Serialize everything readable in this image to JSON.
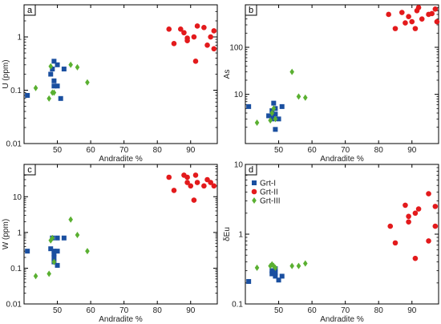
{
  "colors": {
    "grt1": "#1a4fa0",
    "grt2": "#e31a1c",
    "grt3": "#5ab031",
    "frame": "#000000"
  },
  "chart_data": [
    {
      "panel": "a",
      "type": "scatter",
      "xlabel": "Andradite %",
      "ylabel": "U (ppm)",
      "xlim": [
        40,
        98
      ],
      "ylim": [
        0.01,
        4
      ],
      "yscale": "log",
      "xticks": [
        50,
        60,
        70,
        80,
        90
      ],
      "yticks": [
        0.01,
        0.1,
        1
      ],
      "ytick_labels": [
        "0.01",
        "0.1",
        "1"
      ],
      "series": [
        {
          "marker": "square",
          "color": "grt1",
          "points": [
            [
              41,
              0.08
            ],
            [
              48,
              0.2
            ],
            [
              48.5,
              0.25
            ],
            [
              49,
              0.35
            ],
            [
              49,
              0.15
            ],
            [
              50,
              0.3
            ],
            [
              49,
              0.12
            ],
            [
              50,
              0.12
            ],
            [
              51,
              0.07
            ],
            [
              52,
              0.25
            ]
          ]
        },
        {
          "marker": "circle",
          "color": "grt2",
          "points": [
            [
              83.5,
              1.4
            ],
            [
              85,
              0.75
            ],
            [
              87,
              1.4
            ],
            [
              88,
              1.2
            ],
            [
              89,
              0.95
            ],
            [
              89,
              0.85
            ],
            [
              91,
              1.0
            ],
            [
              92,
              1.6
            ],
            [
              94,
              1.5
            ],
            [
              95,
              0.7
            ],
            [
              96,
              1.0
            ],
            [
              97,
              1.3
            ],
            [
              97,
              0.6
            ],
            [
              91.5,
              0.35
            ]
          ]
        },
        {
          "marker": "diamond",
          "color": "grt3",
          "points": [
            [
              43.5,
              0.11
            ],
            [
              47.5,
              0.07
            ],
            [
              48,
              0.28
            ],
            [
              48.5,
              0.09
            ],
            [
              49,
              0.09
            ],
            [
              54,
              0.3
            ],
            [
              56,
              0.27
            ],
            [
              59,
              0.14
            ]
          ]
        }
      ]
    },
    {
      "panel": "b",
      "type": "scatter",
      "xlabel": "Andradite %",
      "ylabel": "As",
      "xlim": [
        40,
        98
      ],
      "ylim": [
        0.9,
        800
      ],
      "yscale": "log",
      "xticks": [
        50,
        60,
        70,
        80,
        90
      ],
      "yticks": [
        10,
        100
      ],
      "ytick_labels": [
        "10",
        "100"
      ],
      "series": [
        {
          "marker": "square",
          "color": "grt1",
          "points": [
            [
              41,
              5.5
            ],
            [
              47,
              3.5
            ],
            [
              48,
              3.0
            ],
            [
              48,
              4.5
            ],
            [
              48.5,
              6.5
            ],
            [
              49,
              5.0
            ],
            [
              49,
              3.8
            ],
            [
              49,
              1.8
            ],
            [
              50,
              3.0
            ],
            [
              51,
              5.5
            ],
            [
              48,
              3.2
            ]
          ]
        },
        {
          "marker": "circle",
          "color": "grt2",
          "points": [
            [
              83,
              500
            ],
            [
              85,
              250
            ],
            [
              87,
              550
            ],
            [
              88,
              330
            ],
            [
              89,
              450
            ],
            [
              90,
              350
            ],
            [
              91,
              250
            ],
            [
              92,
              700
            ],
            [
              93,
              400
            ],
            [
              95,
              500
            ],
            [
              96,
              520
            ],
            [
              97,
              650
            ],
            [
              97.5,
              350
            ],
            [
              91.5,
              600
            ]
          ]
        },
        {
          "marker": "diamond",
          "color": "grt3",
          "points": [
            [
              43.5,
              2.5
            ],
            [
              47.5,
              2.8
            ],
            [
              48,
              4.0
            ],
            [
              48.5,
              5.0
            ],
            [
              49,
              3.0
            ],
            [
              54,
              30
            ],
            [
              56,
              9
            ],
            [
              58,
              8.5
            ]
          ]
        }
      ]
    },
    {
      "panel": "c",
      "type": "scatter",
      "xlabel": "Andradite %",
      "ylabel": "W (ppm)",
      "xlim": [
        40,
        98
      ],
      "ylim": [
        0.01,
        80
      ],
      "yscale": "log",
      "xticks": [
        50,
        60,
        70,
        80,
        90
      ],
      "yticks": [
        0.01,
        0.1,
        1,
        10
      ],
      "ytick_labels": [
        "0.01",
        "0.1",
        "1",
        "10"
      ],
      "series": [
        {
          "marker": "square",
          "color": "grt1",
          "points": [
            [
              41,
              0.3
            ],
            [
              48,
              0.35
            ],
            [
              48.5,
              0.7
            ],
            [
              49,
              0.3
            ],
            [
              49,
              0.15
            ],
            [
              49,
              0.25
            ],
            [
              50,
              0.7
            ],
            [
              50,
              0.12
            ],
            [
              52,
              0.7
            ],
            [
              50,
              0.3
            ],
            [
              49,
              0.2
            ]
          ]
        },
        {
          "marker": "circle",
          "color": "grt2",
          "points": [
            [
              83.5,
              35
            ],
            [
              85,
              15
            ],
            [
              88,
              40
            ],
            [
              89,
              35
            ],
            [
              89,
              25
            ],
            [
              90,
              20
            ],
            [
              91.5,
              40
            ],
            [
              92,
              25
            ],
            [
              94,
              20
            ],
            [
              95,
              30
            ],
            [
              96,
              25
            ],
            [
              97,
              20
            ],
            [
              91,
              8
            ]
          ]
        },
        {
          "marker": "diamond",
          "color": "grt3",
          "points": [
            [
              43.5,
              0.06
            ],
            [
              47.5,
              0.07
            ],
            [
              48,
              0.6
            ],
            [
              48.5,
              0.7
            ],
            [
              49,
              0.15
            ],
            [
              54,
              2.3
            ],
            [
              56,
              0.85
            ],
            [
              59,
              0.3
            ]
          ]
        }
      ]
    },
    {
      "panel": "d",
      "type": "scatter",
      "xlabel": "Andradite %",
      "ylabel": "δEu",
      "xlim": [
        40,
        98
      ],
      "ylim": [
        0.1,
        10
      ],
      "yscale": "log",
      "xticks": [
        50,
        60,
        70,
        80,
        90
      ],
      "yticks": [
        0.1,
        1,
        10
      ],
      "ytick_labels": [
        "0.1",
        "1",
        "10"
      ],
      "legend": {
        "placement": "top-left",
        "entries": [
          "Grt-I",
          "Grt-II",
          "Grt-III"
        ]
      },
      "series": [
        {
          "name": "Grt-I",
          "marker": "square",
          "color": "grt1",
          "points": [
            [
              41,
              0.21
            ],
            [
              48,
              0.27
            ],
            [
              48.5,
              0.3
            ],
            [
              49,
              0.25
            ],
            [
              49,
              0.32
            ],
            [
              50,
              0.22
            ],
            [
              51,
              0.25
            ],
            [
              48,
              0.3
            ],
            [
              49,
              0.28
            ]
          ]
        },
        {
          "name": "Grt-II",
          "marker": "circle",
          "color": "grt2",
          "points": [
            [
              83.5,
              1.3
            ],
            [
              85,
              0.75
            ],
            [
              88,
              2.6
            ],
            [
              89,
              1.5
            ],
            [
              89,
              1.8
            ],
            [
              91,
              2.0
            ],
            [
              92,
              2.3
            ],
            [
              95,
              3.8
            ],
            [
              95,
              0.8
            ],
            [
              97,
              1.3
            ],
            [
              97,
              2.5
            ],
            [
              91,
              0.45
            ]
          ]
        },
        {
          "name": "Grt-III",
          "marker": "diamond",
          "color": "grt3",
          "points": [
            [
              43.5,
              0.33
            ],
            [
              47.5,
              0.35
            ],
            [
              48,
              0.37
            ],
            [
              48.5,
              0.35
            ],
            [
              49,
              0.33
            ],
            [
              54,
              0.35
            ],
            [
              56,
              0.35
            ],
            [
              58,
              0.38
            ]
          ]
        }
      ]
    }
  ]
}
